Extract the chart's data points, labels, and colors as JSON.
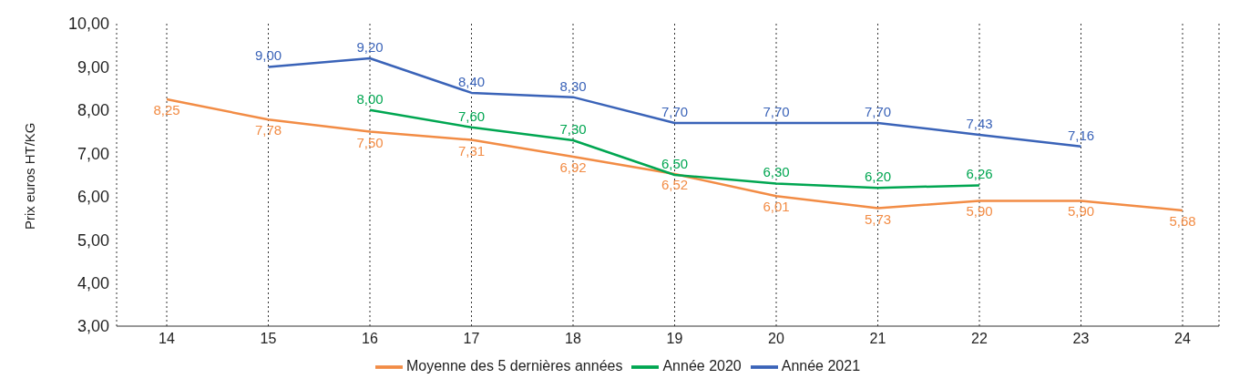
{
  "chart_data": {
    "type": "line",
    "ylabel": "Prix euros HT/KG",
    "categories": [
      "14",
      "15",
      "16",
      "17",
      "18",
      "19",
      "20",
      "21",
      "22",
      "23",
      "24"
    ],
    "ylim": [
      3,
      10
    ],
    "yticks": [
      {
        "value": 3,
        "label": "3,00"
      },
      {
        "value": 4,
        "label": "4,00"
      },
      {
        "value": 5,
        "label": "5,00"
      },
      {
        "value": 6,
        "label": "6,00"
      },
      {
        "value": 7,
        "label": "7,00"
      },
      {
        "value": 8,
        "label": "8,00"
      },
      {
        "value": 9,
        "label": "9,00"
      },
      {
        "value": 10,
        "label": "10,00"
      }
    ],
    "grid": "x",
    "legend": "bottom",
    "marker": "none",
    "line_style": "solid",
    "series": [
      {
        "name": "Moyenne des 5 dernières années",
        "color": "#f28c45",
        "values": [
          8.25,
          7.78,
          7.5,
          7.31,
          6.92,
          6.52,
          6.01,
          5.73,
          5.9,
          5.9,
          5.68
        ],
        "value_labels": [
          "8,25",
          "7,78",
          "7,50",
          "7,31",
          "6,92",
          "6,52",
          "6,01",
          "5,73",
          "5,90",
          "5,90",
          "5,68"
        ]
      },
      {
        "name": "Année 2020",
        "color": "#00a651",
        "values": [
          null,
          null,
          8.0,
          7.6,
          7.3,
          6.5,
          6.3,
          6.2,
          6.26,
          null,
          null
        ],
        "value_labels": [
          null,
          null,
          "8,00",
          "7,60",
          "7,30",
          "6,50",
          "6,30",
          "6,20",
          "6,26",
          null,
          null
        ]
      },
      {
        "name": "Année 2021",
        "color": "#3a63b8",
        "values": [
          null,
          9.0,
          9.2,
          8.4,
          8.3,
          7.7,
          7.7,
          7.7,
          7.43,
          7.16,
          null
        ],
        "value_labels": [
          null,
          "9,00",
          "9,20",
          "8,40",
          "8,30",
          "7,70",
          "7,70",
          "7,70",
          "7,43",
          "7,16",
          null
        ]
      }
    ]
  }
}
